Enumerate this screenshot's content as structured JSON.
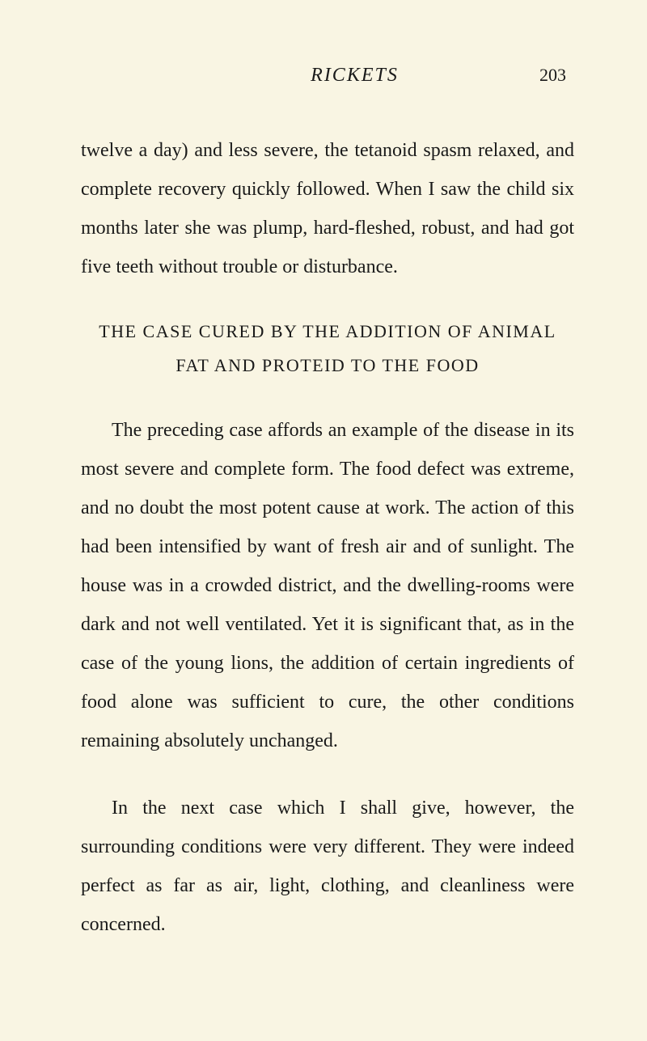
{
  "page": {
    "running_header": "RICKETS",
    "page_number": "203",
    "background_color": "#f9f5e3",
    "text_color": "#1a1a1a",
    "font_family": "Georgia, 'Times New Roman', serif",
    "body_fontsize": 24,
    "heading_fontsize": 22,
    "line_height": 2.0
  },
  "paragraphs": {
    "p1": "twelve a day) and less severe, the tetanoid spasm relaxed, and complete recovery quickly followed. When I saw the child six months later she was plump, hard-fleshed, robust, and had got five teeth without trouble or disturbance.",
    "heading": "THE CASE CURED BY THE ADDITION OF ANIMAL FAT AND PROTEID TO THE FOOD",
    "p2": "The preceding case affords an example of the disease in its most severe and complete form. The food defect was extreme, and no doubt the most potent cause at work. The action of this had been intensified by want of fresh air and of sunlight. The house was in a crowded district, and the dwell­ing-rooms were dark and not well ventilated. Yet it is significant that, as in the case of the young lions, the addition of certain ingredients of food alone was sufficient to cure, the other conditions remaining absolutely unchanged.",
    "p3": "In the next case which I shall give, however, the surrounding conditions were very different. They were indeed perfect as far as air, light, clothing, and cleanliness were concerned."
  }
}
